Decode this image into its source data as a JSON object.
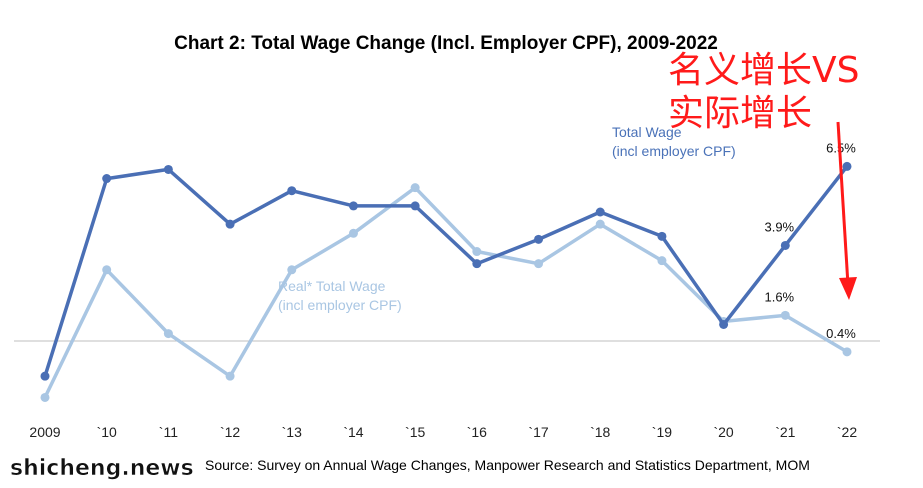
{
  "title": "Chart 2: Total Wage Change (Incl. Employer CPF), 2009-2022",
  "overlay_text": [
    "名义增长VS",
    "实际增长"
  ],
  "source": "Source: Survey on Annual Wage Changes, Manpower Research and Statistics Department, MOM",
  "watermark": "shicheng.news",
  "colors": {
    "total": "#4a6fb5",
    "real": "#a9c6e3",
    "overlay": "#ff1a1a",
    "axis": "#bfbfbf"
  },
  "chart_data": {
    "type": "line",
    "categories": [
      "2009",
      "`10",
      "`11",
      "`12",
      "`13",
      "`14",
      "`15",
      "`16",
      "`17",
      "`18",
      "`19",
      "`20",
      "`21",
      "`22"
    ],
    "ylim": [
      -2.5,
      10
    ],
    "grid": false,
    "series": [
      {
        "name": "Total Wage (incl employer CPF)",
        "name_lines": [
          "Total Wage",
          "(incl employer CPF)"
        ],
        "color": "#4a6fb5",
        "values": [
          -0.4,
          6.1,
          6.4,
          4.6,
          5.7,
          5.2,
          5.2,
          3.3,
          4.1,
          5.0,
          4.2,
          1.3,
          3.9,
          6.5
        ]
      },
      {
        "name": "Real* Total Wage (incl employer CPF)",
        "name_lines": [
          "Real* Total Wage",
          "(incl employer CPF)"
        ],
        "color": "#a9c6e3",
        "values": [
          -1.1,
          3.1,
          1.0,
          -0.4,
          3.1,
          4.3,
          5.8,
          3.7,
          3.3,
          4.6,
          3.4,
          1.4,
          1.6,
          0.4
        ]
      }
    ],
    "data_labels": [
      {
        "series": 0,
        "index": 12,
        "text": "3.9%"
      },
      {
        "series": 0,
        "index": 13,
        "text": "6.5%"
      },
      {
        "series": 1,
        "index": 12,
        "text": "1.6%"
      },
      {
        "series": 1,
        "index": 13,
        "text": "0.4%"
      }
    ]
  }
}
